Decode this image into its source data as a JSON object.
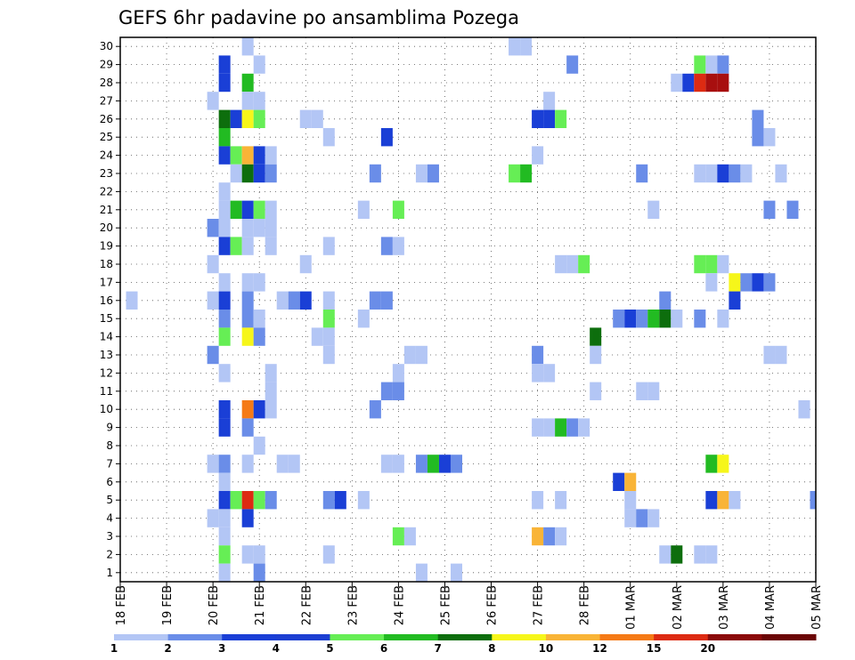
{
  "chart_data": {
    "type": "heatmap",
    "title": "GEFS 6hr padavine po ansamblima Pozega",
    "xlabel": "",
    "ylabel": "",
    "y_ticks": [
      "1",
      "2",
      "3",
      "4",
      "5",
      "6",
      "7",
      "8",
      "9",
      "10",
      "11",
      "12",
      "13",
      "14",
      "15",
      "16",
      "17",
      "18",
      "19",
      "20",
      "21",
      "22",
      "23",
      "24",
      "25",
      "26",
      "27",
      "28",
      "29",
      "30"
    ],
    "ylim": [
      0.5,
      30.5
    ],
    "x_ticks": [
      "18 FEB",
      "19 FEB",
      "20 FEB",
      "21 FEB",
      "22 FEB",
      "23 FEB",
      "24 FEB",
      "25 FEB",
      "26 FEB",
      "27 FEB",
      "28 FEB",
      "01 MAR",
      "02 MAR",
      "03 MAR",
      "04 MAR",
      "05 MAR"
    ],
    "x_units": "days from 18 FEB, 6-hourly steps",
    "xlim": [
      0,
      15
    ],
    "grid": true,
    "legend": {
      "placement": "bottom",
      "labels": [
        "1",
        "2",
        "3",
        "4",
        "5",
        "6",
        "7",
        "8",
        "10",
        "12",
        "15",
        "20"
      ],
      "colors": [
        "#b3c6f5",
        "#6a8de8",
        "#1a3fd6",
        "#1c3fd2",
        "#66ee55",
        "#22bb22",
        "#0d6e0d",
        "#f6f61a",
        "#f9b437",
        "#f57a16",
        "#dd2b12",
        "#8b0a0a",
        "#6b0505"
      ]
    },
    "levels": [
      {
        "lo": 1,
        "hi": 2,
        "color": "#b3c6f5"
      },
      {
        "lo": 2,
        "hi": 3,
        "color": "#6a8de8"
      },
      {
        "lo": 3,
        "hi": 4,
        "color": "#1a3fd6"
      },
      {
        "lo": 4,
        "hi": 5,
        "color": "#66ee55"
      },
      {
        "lo": 5,
        "hi": 6,
        "color": "#22bb22"
      },
      {
        "lo": 6,
        "hi": 7,
        "color": "#0d6e0d"
      },
      {
        "lo": 7,
        "hi": 8,
        "color": "#f6f61a"
      },
      {
        "lo": 8,
        "hi": 10,
        "color": "#f9b437"
      },
      {
        "lo": 10,
        "hi": 12,
        "color": "#f57a16"
      },
      {
        "lo": 12,
        "hi": 15,
        "color": "#dd2b12"
      },
      {
        "lo": 15,
        "hi": 20,
        "color": "#a80f0f"
      },
      {
        "lo": 20,
        "hi": 30,
        "color": "#6b0505"
      }
    ],
    "cells": [
      {
        "m": 30,
        "t": 2.75,
        "v": 1.5
      },
      {
        "m": 30,
        "t": 8.5,
        "v": 1.5
      },
      {
        "m": 30,
        "t": 8.75,
        "v": 1.5
      },
      {
        "m": 29,
        "t": 2.25,
        "v": 3.5
      },
      {
        "m": 29,
        "t": 3.0,
        "v": 1.5
      },
      {
        "m": 29,
        "t": 9.75,
        "v": 2.5
      },
      {
        "m": 29,
        "t": 12.5,
        "v": 4.5
      },
      {
        "m": 29,
        "t": 12.75,
        "v": 1.5
      },
      {
        "m": 29,
        "t": 13.0,
        "v": 2.5
      },
      {
        "m": 28,
        "t": 2.25,
        "v": 3.5
      },
      {
        "m": 28,
        "t": 2.75,
        "v": 5.5
      },
      {
        "m": 28,
        "t": 12.0,
        "v": 1.5
      },
      {
        "m": 28,
        "t": 12.25,
        "v": 3.5
      },
      {
        "m": 28,
        "t": 12.5,
        "v": 13
      },
      {
        "m": 28,
        "t": 12.75,
        "v": 17
      },
      {
        "m": 28,
        "t": 13.0,
        "v": 17
      },
      {
        "m": 27,
        "t": 2.0,
        "v": 1.5
      },
      {
        "m": 27,
        "t": 2.75,
        "v": 1.5
      },
      {
        "m": 27,
        "t": 3.0,
        "v": 1.5
      },
      {
        "m": 27,
        "t": 9.25,
        "v": 1.5
      },
      {
        "m": 26,
        "t": 2.25,
        "v": 6.5
      },
      {
        "m": 26,
        "t": 2.5,
        "v": 3.5
      },
      {
        "m": 26,
        "t": 2.75,
        "v": 7.5
      },
      {
        "m": 26,
        "t": 3.0,
        "v": 4.5
      },
      {
        "m": 26,
        "t": 4.0,
        "v": 1.5
      },
      {
        "m": 26,
        "t": 4.25,
        "v": 1.5
      },
      {
        "m": 26,
        "t": 9.0,
        "v": 3.5
      },
      {
        "m": 26,
        "t": 9.25,
        "v": 3.5
      },
      {
        "m": 26,
        "t": 9.5,
        "v": 4.5
      },
      {
        "m": 26,
        "t": 13.75,
        "v": 2.5
      },
      {
        "m": 25,
        "t": 2.25,
        "v": 5.5
      },
      {
        "m": 25,
        "t": 4.5,
        "v": 1.5
      },
      {
        "m": 25,
        "t": 5.75,
        "v": 3.5
      },
      {
        "m": 25,
        "t": 13.75,
        "v": 2.5
      },
      {
        "m": 25,
        "t": 14.0,
        "v": 1.5
      },
      {
        "m": 24,
        "t": 2.25,
        "v": 3.5
      },
      {
        "m": 24,
        "t": 2.5,
        "v": 4.5
      },
      {
        "m": 24,
        "t": 2.75,
        "v": 9
      },
      {
        "m": 24,
        "t": 3.0,
        "v": 3.5
      },
      {
        "m": 24,
        "t": 3.25,
        "v": 1.5
      },
      {
        "m": 24,
        "t": 9.0,
        "v": 1.5
      },
      {
        "m": 23,
        "t": 2.5,
        "v": 1.5
      },
      {
        "m": 23,
        "t": 2.75,
        "v": 6.5
      },
      {
        "m": 23,
        "t": 3.0,
        "v": 3.5
      },
      {
        "m": 23,
        "t": 3.25,
        "v": 2.5
      },
      {
        "m": 23,
        "t": 5.5,
        "v": 2.5
      },
      {
        "m": 23,
        "t": 6.5,
        "v": 1.5
      },
      {
        "m": 23,
        "t": 6.75,
        "v": 2.5
      },
      {
        "m": 23,
        "t": 8.5,
        "v": 4.5
      },
      {
        "m": 23,
        "t": 8.75,
        "v": 5.5
      },
      {
        "m": 23,
        "t": 11.25,
        "v": 2.5
      },
      {
        "m": 23,
        "t": 12.5,
        "v": 1.5
      },
      {
        "m": 23,
        "t": 12.75,
        "v": 1.5
      },
      {
        "m": 23,
        "t": 13.0,
        "v": 3.5
      },
      {
        "m": 23,
        "t": 13.25,
        "v": 2.5
      },
      {
        "m": 23,
        "t": 13.5,
        "v": 1.5
      },
      {
        "m": 23,
        "t": 14.25,
        "v": 1.5
      },
      {
        "m": 22,
        "t": 2.25,
        "v": 1.5
      },
      {
        "m": 21,
        "t": 2.25,
        "v": 1.5
      },
      {
        "m": 21,
        "t": 2.5,
        "v": 5.5
      },
      {
        "m": 21,
        "t": 2.75,
        "v": 3.5
      },
      {
        "m": 21,
        "t": 3.0,
        "v": 4.5
      },
      {
        "m": 21,
        "t": 3.25,
        "v": 1.5
      },
      {
        "m": 21,
        "t": 5.25,
        "v": 1.5
      },
      {
        "m": 21,
        "t": 6.0,
        "v": 4.5
      },
      {
        "m": 21,
        "t": 11.5,
        "v": 1.5
      },
      {
        "m": 21,
        "t": 14.0,
        "v": 2.5
      },
      {
        "m": 21,
        "t": 14.5,
        "v": 2.5
      },
      {
        "m": 20,
        "t": 2.0,
        "v": 2.5
      },
      {
        "m": 20,
        "t": 2.25,
        "v": 1.5
      },
      {
        "m": 20,
        "t": 2.75,
        "v": 1.5
      },
      {
        "m": 20,
        "t": 3.0,
        "v": 1.5
      },
      {
        "m": 20,
        "t": 3.25,
        "v": 1.5
      },
      {
        "m": 19,
        "t": 2.25,
        "v": 3.5
      },
      {
        "m": 19,
        "t": 2.5,
        "v": 4.5
      },
      {
        "m": 19,
        "t": 2.75,
        "v": 1.5
      },
      {
        "m": 19,
        "t": 3.25,
        "v": 1.5
      },
      {
        "m": 19,
        "t": 4.5,
        "v": 1.5
      },
      {
        "m": 19,
        "t": 5.75,
        "v": 2.5
      },
      {
        "m": 19,
        "t": 6.0,
        "v": 1.5
      },
      {
        "m": 18,
        "t": 2.0,
        "v": 1.5
      },
      {
        "m": 18,
        "t": 4.0,
        "v": 1.5
      },
      {
        "m": 18,
        "t": 9.5,
        "v": 1.5
      },
      {
        "m": 18,
        "t": 9.75,
        "v": 1.5
      },
      {
        "m": 18,
        "t": 10.0,
        "v": 4.5
      },
      {
        "m": 18,
        "t": 12.5,
        "v": 4.5
      },
      {
        "m": 18,
        "t": 12.75,
        "v": 4.5
      },
      {
        "m": 18,
        "t": 13.0,
        "v": 1.5
      },
      {
        "m": 17,
        "t": 2.25,
        "v": 1.5
      },
      {
        "m": 17,
        "t": 2.75,
        "v": 1.5
      },
      {
        "m": 17,
        "t": 3.0,
        "v": 1.5
      },
      {
        "m": 17,
        "t": 12.75,
        "v": 1.5
      },
      {
        "m": 17,
        "t": 13.25,
        "v": 7.5
      },
      {
        "m": 17,
        "t": 13.5,
        "v": 2.5
      },
      {
        "m": 17,
        "t": 13.75,
        "v": 3.5
      },
      {
        "m": 17,
        "t": 14.0,
        "v": 2.5
      },
      {
        "m": 16,
        "t": 0.25,
        "v": 1.5
      },
      {
        "m": 16,
        "t": 2.0,
        "v": 1.5
      },
      {
        "m": 16,
        "t": 2.25,
        "v": 3.5
      },
      {
        "m": 16,
        "t": 2.75,
        "v": 2.5
      },
      {
        "m": 16,
        "t": 3.5,
        "v": 1.5
      },
      {
        "m": 16,
        "t": 3.75,
        "v": 2.5
      },
      {
        "m": 16,
        "t": 4.0,
        "v": 3.5
      },
      {
        "m": 16,
        "t": 4.5,
        "v": 1.5
      },
      {
        "m": 16,
        "t": 5.5,
        "v": 2.5
      },
      {
        "m": 16,
        "t": 5.75,
        "v": 2.5
      },
      {
        "m": 16,
        "t": 11.75,
        "v": 2.5
      },
      {
        "m": 16,
        "t": 13.25,
        "v": 3.5
      },
      {
        "m": 15,
        "t": 2.25,
        "v": 2.5
      },
      {
        "m": 15,
        "t": 2.75,
        "v": 2.5
      },
      {
        "m": 15,
        "t": 3.0,
        "v": 1.5
      },
      {
        "m": 15,
        "t": 4.5,
        "v": 4.5
      },
      {
        "m": 15,
        "t": 5.25,
        "v": 1.5
      },
      {
        "m": 15,
        "t": 10.75,
        "v": 2.5
      },
      {
        "m": 15,
        "t": 11.0,
        "v": 3.5
      },
      {
        "m": 15,
        "t": 11.25,
        "v": 2.5
      },
      {
        "m": 15,
        "t": 11.5,
        "v": 5.5
      },
      {
        "m": 15,
        "t": 11.75,
        "v": 6.5
      },
      {
        "m": 15,
        "t": 12.0,
        "v": 1.5
      },
      {
        "m": 15,
        "t": 12.5,
        "v": 2.5
      },
      {
        "m": 15,
        "t": 13.0,
        "v": 1.5
      },
      {
        "m": 14,
        "t": 2.25,
        "v": 4.5
      },
      {
        "m": 14,
        "t": 2.75,
        "v": 7.5
      },
      {
        "m": 14,
        "t": 3.0,
        "v": 2.5
      },
      {
        "m": 14,
        "t": 4.25,
        "v": 1.5
      },
      {
        "m": 14,
        "t": 4.5,
        "v": 1.5
      },
      {
        "m": 14,
        "t": 10.25,
        "v": 6.5
      },
      {
        "m": 13,
        "t": 2.0,
        "v": 2.5
      },
      {
        "m": 13,
        "t": 4.5,
        "v": 1.5
      },
      {
        "m": 13,
        "t": 6.25,
        "v": 1.5
      },
      {
        "m": 13,
        "t": 6.5,
        "v": 1.5
      },
      {
        "m": 13,
        "t": 9.0,
        "v": 2.5
      },
      {
        "m": 13,
        "t": 10.25,
        "v": 1.5
      },
      {
        "m": 13,
        "t": 14.0,
        "v": 1.5
      },
      {
        "m": 13,
        "t": 14.25,
        "v": 1.5
      },
      {
        "m": 12,
        "t": 2.25,
        "v": 1.5
      },
      {
        "m": 12,
        "t": 3.25,
        "v": 1.5
      },
      {
        "m": 12,
        "t": 6.0,
        "v": 1.5
      },
      {
        "m": 12,
        "t": 9.0,
        "v": 1.5
      },
      {
        "m": 12,
        "t": 9.25,
        "v": 1.5
      },
      {
        "m": 11,
        "t": 3.25,
        "v": 1.5
      },
      {
        "m": 11,
        "t": 5.75,
        "v": 2.5
      },
      {
        "m": 11,
        "t": 6.0,
        "v": 2.5
      },
      {
        "m": 11,
        "t": 10.25,
        "v": 1.5
      },
      {
        "m": 11,
        "t": 11.25,
        "v": 1.5
      },
      {
        "m": 11,
        "t": 11.5,
        "v": 1.5
      },
      {
        "m": 10,
        "t": 2.25,
        "v": 3.5
      },
      {
        "m": 10,
        "t": 2.75,
        "v": 10.5
      },
      {
        "m": 10,
        "t": 3.0,
        "v": 3.5
      },
      {
        "m": 10,
        "t": 3.25,
        "v": 1.5
      },
      {
        "m": 10,
        "t": 5.5,
        "v": 2.5
      },
      {
        "m": 10,
        "t": 14.75,
        "v": 1.5
      },
      {
        "m": 9,
        "t": 2.25,
        "v": 3.5
      },
      {
        "m": 9,
        "t": 2.75,
        "v": 2.5
      },
      {
        "m": 9,
        "t": 9.0,
        "v": 1.5
      },
      {
        "m": 9,
        "t": 9.25,
        "v": 1.5
      },
      {
        "m": 9,
        "t": 9.5,
        "v": 5.5
      },
      {
        "m": 9,
        "t": 9.75,
        "v": 2.5
      },
      {
        "m": 9,
        "t": 10.0,
        "v": 1.5
      },
      {
        "m": 8,
        "t": 3.0,
        "v": 1.5
      },
      {
        "m": 7,
        "t": 2.0,
        "v": 1.5
      },
      {
        "m": 7,
        "t": 2.25,
        "v": 2.5
      },
      {
        "m": 7,
        "t": 2.75,
        "v": 1.5
      },
      {
        "m": 7,
        "t": 3.5,
        "v": 1.5
      },
      {
        "m": 7,
        "t": 3.75,
        "v": 1.5
      },
      {
        "m": 7,
        "t": 5.75,
        "v": 1.5
      },
      {
        "m": 7,
        "t": 6.0,
        "v": 1.5
      },
      {
        "m": 7,
        "t": 6.5,
        "v": 2.5
      },
      {
        "m": 7,
        "t": 6.75,
        "v": 5.5
      },
      {
        "m": 7,
        "t": 7.0,
        "v": 3.5
      },
      {
        "m": 7,
        "t": 7.25,
        "v": 2.5
      },
      {
        "m": 7,
        "t": 12.75,
        "v": 5.5
      },
      {
        "m": 7,
        "t": 13.0,
        "v": 7.5
      },
      {
        "m": 6,
        "t": 2.25,
        "v": 1.5
      },
      {
        "m": 6,
        "t": 10.75,
        "v": 3.5
      },
      {
        "m": 6,
        "t": 11.0,
        "v": 9
      },
      {
        "m": 5,
        "t": 2.25,
        "v": 3.5
      },
      {
        "m": 5,
        "t": 2.5,
        "v": 4.5
      },
      {
        "m": 5,
        "t": 2.75,
        "v": 13
      },
      {
        "m": 5,
        "t": 3.0,
        "v": 4.5
      },
      {
        "m": 5,
        "t": 3.25,
        "v": 2.5
      },
      {
        "m": 5,
        "t": 4.5,
        "v": 2.5
      },
      {
        "m": 5,
        "t": 4.75,
        "v": 3.5
      },
      {
        "m": 5,
        "t": 5.25,
        "v": 1.5
      },
      {
        "m": 5,
        "t": 9.0,
        "v": 1.5
      },
      {
        "m": 5,
        "t": 9.5,
        "v": 1.5
      },
      {
        "m": 5,
        "t": 11.0,
        "v": 1.5
      },
      {
        "m": 5,
        "t": 12.75,
        "v": 3.5
      },
      {
        "m": 5,
        "t": 13.0,
        "v": 9
      },
      {
        "m": 5,
        "t": 13.25,
        "v": 1.5
      },
      {
        "m": 5,
        "t": 15.0,
        "v": 2.5
      },
      {
        "m": 4,
        "t": 2.0,
        "v": 1.5
      },
      {
        "m": 4,
        "t": 2.25,
        "v": 1.5
      },
      {
        "m": 4,
        "t": 2.75,
        "v": 3.5
      },
      {
        "m": 4,
        "t": 11.0,
        "v": 1.5
      },
      {
        "m": 4,
        "t": 11.25,
        "v": 2.5
      },
      {
        "m": 4,
        "t": 11.5,
        "v": 1.5
      },
      {
        "m": 3,
        "t": 2.25,
        "v": 1.5
      },
      {
        "m": 3,
        "t": 6.0,
        "v": 4.5
      },
      {
        "m": 3,
        "t": 6.25,
        "v": 1.5
      },
      {
        "m": 3,
        "t": 9.0,
        "v": 9
      },
      {
        "m": 3,
        "t": 9.25,
        "v": 2.5
      },
      {
        "m": 3,
        "t": 9.5,
        "v": 1.5
      },
      {
        "m": 2,
        "t": 2.25,
        "v": 4.5
      },
      {
        "m": 2,
        "t": 2.75,
        "v": 1.5
      },
      {
        "m": 2,
        "t": 3.0,
        "v": 1.5
      },
      {
        "m": 2,
        "t": 4.5,
        "v": 1.5
      },
      {
        "m": 2,
        "t": 11.75,
        "v": 1.5
      },
      {
        "m": 2,
        "t": 12.0,
        "v": 6.5
      },
      {
        "m": 2,
        "t": 12.5,
        "v": 1.5
      },
      {
        "m": 2,
        "t": 12.75,
        "v": 1.5
      },
      {
        "m": 1,
        "t": 2.25,
        "v": 1.5
      },
      {
        "m": 1,
        "t": 3.0,
        "v": 2.5
      },
      {
        "m": 1,
        "t": 6.5,
        "v": 1.5
      },
      {
        "m": 1,
        "t": 7.25,
        "v": 1.5
      }
    ]
  }
}
